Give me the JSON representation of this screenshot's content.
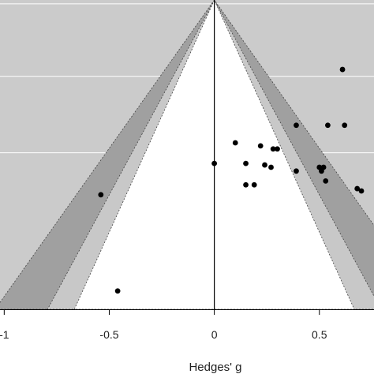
{
  "chart_data": {
    "type": "scatter",
    "subtype": "contour-enhanced funnel plot",
    "title": "",
    "xlabel": "Hedges' g",
    "ylabel": "",
    "xlim": [
      -1.02,
      0.76
    ],
    "ylim": [
      0,
      0.405
    ],
    "y_reversed": true,
    "x_ticks": [
      -1,
      -0.5,
      0,
      0.5
    ],
    "x_tick_labels": [
      "-1",
      "-0.5",
      "0",
      "0.5"
    ],
    "y_gridlines": [
      0.005,
      0.1,
      0.2
    ],
    "grid": false,
    "center_line_x": 0,
    "funnel_contours": [
      {
        "name": "",
        "z": 1.645,
        "color": "#ffffff"
      },
      {
        "name": "",
        "z": 1.96,
        "color": "#c8c8c8"
      },
      {
        "name": "",
        "z": 2.576,
        "color": "#a0a0a0"
      }
    ],
    "outside_color": "#cbcbcb",
    "points_color": "#000000",
    "points": [
      {
        "x": 0.61,
        "y": 0.091
      },
      {
        "x": 0.1,
        "y": 0.187
      },
      {
        "x": 0.22,
        "y": 0.191
      },
      {
        "x": 0.28,
        "y": 0.195
      },
      {
        "x": 0.3,
        "y": 0.195
      },
      {
        "x": 0.39,
        "y": 0.164
      },
      {
        "x": 0.54,
        "y": 0.164
      },
      {
        "x": 0.62,
        "y": 0.164
      },
      {
        "x": 0.0,
        "y": 0.214
      },
      {
        "x": 0.15,
        "y": 0.214
      },
      {
        "x": 0.24,
        "y": 0.216
      },
      {
        "x": 0.27,
        "y": 0.219
      },
      {
        "x": 0.39,
        "y": 0.224
      },
      {
        "x": 0.5,
        "y": 0.219
      },
      {
        "x": 0.51,
        "y": 0.224
      },
      {
        "x": 0.52,
        "y": 0.219
      },
      {
        "x": 0.53,
        "y": 0.237
      },
      {
        "x": 0.15,
        "y": 0.242
      },
      {
        "x": 0.19,
        "y": 0.242
      },
      {
        "x": 0.68,
        "y": 0.247
      },
      {
        "x": 0.7,
        "y": 0.25
      },
      {
        "x": -0.54,
        "y": 0.255
      },
      {
        "x": -0.46,
        "y": 0.381
      }
    ]
  }
}
